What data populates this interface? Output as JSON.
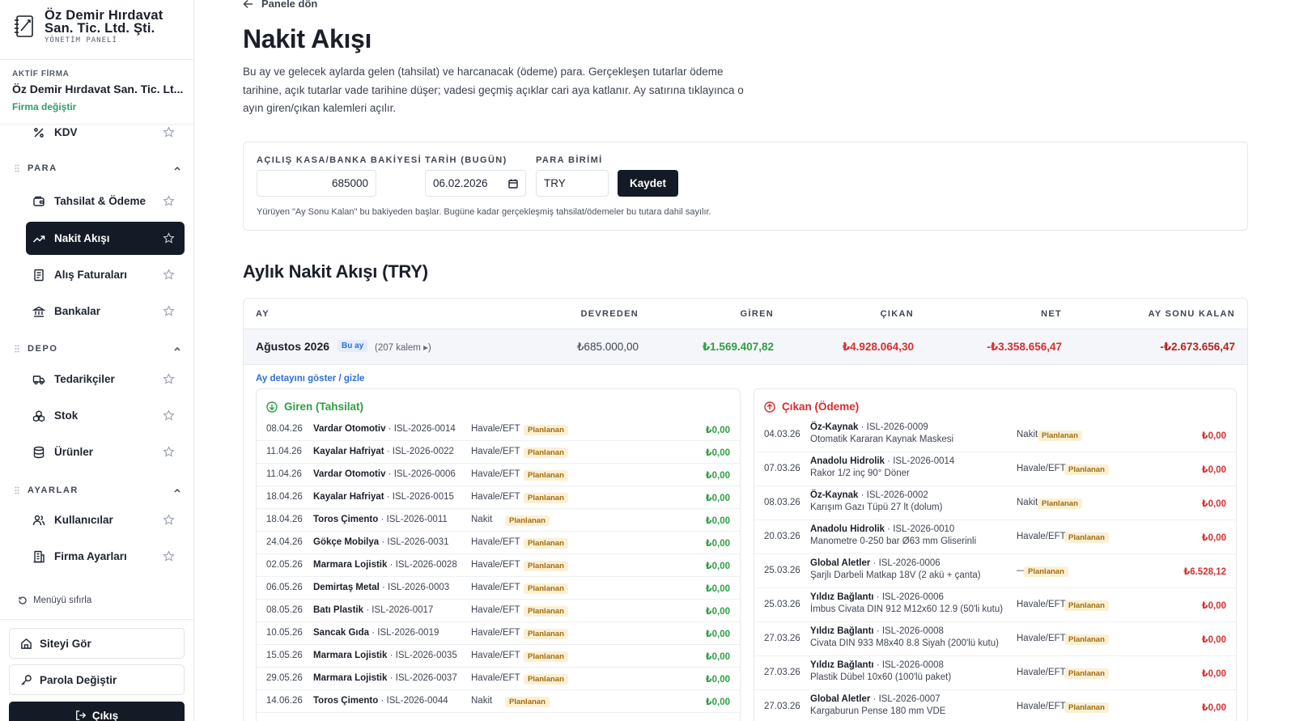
{
  "brand": {
    "name_line1": "Öz Demir Hırdavat",
    "name_line2": "San. Tic. Ltd. Şti.",
    "subtitle": "YÖNETİM PANELİ"
  },
  "active_firm": {
    "label": "AKTİF FİRMA",
    "name": "Öz Demir Hırdavat San. Tic. Lt...",
    "change_label": "Firma değiştir"
  },
  "sidebar": {
    "top_item": "KDV",
    "sections": [
      {
        "title": "PARA",
        "items": [
          "Tahsilat & Ödeme",
          "Nakit Akışı",
          "Alış Faturaları",
          "Bankalar"
        ]
      },
      {
        "title": "DEPO",
        "items": [
          "Tedarikçiler",
          "Stok",
          "Ürünler"
        ]
      },
      {
        "title": "AYARLAR",
        "items": [
          "Kullanıcılar",
          "Firma Ayarları"
        ]
      }
    ],
    "active_item": "Nakit Akışı",
    "reset_label": "Menüyü sıfırla",
    "view_site": "Siteyi Gör",
    "change_password": "Parola Değiştir",
    "logout": "Çıkış"
  },
  "page": {
    "back_label": "Panele dön",
    "title": "Nakit Akışı",
    "description": "Bu ay ve gelecek aylarda gelen (tahsilat) ve harcanacak (ödeme) para. Gerçekleşen tutarlar ödeme tarihine, açık tutarlar vade tarihine düşer; vadesi geçmiş açıklar cari aya katlanır. Ay satırına tıklayınca o ayın giren/çıkan kalemleri açılır."
  },
  "config": {
    "opening_label": "AÇILIŞ KASA/BANKA BAKİYESİ",
    "opening_value": "685000",
    "date_label": "TARİH (BUGÜN)",
    "date_value": "06.02.2026",
    "currency_label": "PARA BİRİMİ",
    "currency_value": "TRY",
    "save_label": "Kaydet",
    "note": "Yürüyen \"Ay Sonu Kalan\" bu bakiyeden başlar. Bugüne kadar gerçekleşmiş tahsilat/ödemeler bu tutara dahil sayılır."
  },
  "monthly": {
    "title": "Aylık Nakit Akışı (TRY)",
    "columns": [
      "AY",
      "DEVREDEN",
      "GİREN",
      "ÇIKAN",
      "NET",
      "AY SONU KALAN"
    ],
    "month": {
      "name": "Ağustos 2026",
      "badge": "Bu ay",
      "count": "(207 kalem ▸)",
      "devreden": "₺685.000,00",
      "giren": "₺1.569.407,82",
      "cikan": "₺4.928.064,30",
      "net": "-₺3.358.656,47",
      "ay_sonu": "-₺2.673.656,47"
    },
    "toggle_label": "Ay detayını göster / gizle"
  },
  "colors": {
    "positive": "#2f9e44",
    "negative": "#d92d2d",
    "net_negative": "#b3261e",
    "dark": "#141a26"
  },
  "giren": {
    "title": "Giren (Tahsilat)",
    "rows": [
      {
        "date": "08.04.26",
        "party": "Vardar Otomotiv",
        "ref": "· ISL-2026-0014",
        "method": "Havale/EFT",
        "tag": "Planlanan",
        "amount": "₺0,00"
      },
      {
        "date": "11.04.26",
        "party": "Kayalar Hafriyat",
        "ref": "· ISL-2026-0022",
        "method": "Havale/EFT",
        "tag": "Planlanan",
        "amount": "₺0,00"
      },
      {
        "date": "11.04.26",
        "party": "Vardar Otomotiv",
        "ref": "· ISL-2026-0006",
        "method": "Havale/EFT",
        "tag": "Planlanan",
        "amount": "₺0,00"
      },
      {
        "date": "18.04.26",
        "party": "Kayalar Hafriyat",
        "ref": "· ISL-2026-0015",
        "method": "Havale/EFT",
        "tag": "Planlanan",
        "amount": "₺0,00"
      },
      {
        "date": "18.04.26",
        "party": "Toros Çimento",
        "ref": "· ISL-2026-0011",
        "method": "Nakit",
        "tag": "Planlanan",
        "amount": "₺0,00"
      },
      {
        "date": "24.04.26",
        "party": "Gökçe Mobilya",
        "ref": "· ISL-2026-0031",
        "method": "Havale/EFT",
        "tag": "Planlanan",
        "amount": "₺0,00"
      },
      {
        "date": "02.05.26",
        "party": "Marmara Lojistik",
        "ref": "· ISL-2026-0028",
        "method": "Havale/EFT",
        "tag": "Planlanan",
        "amount": "₺0,00"
      },
      {
        "date": "06.05.26",
        "party": "Demirtaş Metal",
        "ref": "· ISL-2026-0003",
        "method": "Havale/EFT",
        "tag": "Planlanan",
        "amount": "₺0,00"
      },
      {
        "date": "08.05.26",
        "party": "Batı Plastik",
        "ref": "· ISL-2026-0017",
        "method": "Havale/EFT",
        "tag": "Planlanan",
        "amount": "₺0,00"
      },
      {
        "date": "10.05.26",
        "party": "Sancak Gıda",
        "ref": "· ISL-2026-0019",
        "method": "Havale/EFT",
        "tag": "Planlanan",
        "amount": "₺0,00"
      },
      {
        "date": "15.05.26",
        "party": "Marmara Lojistik",
        "ref": "· ISL-2026-0035",
        "method": "Havale/EFT",
        "tag": "Planlanan",
        "amount": "₺0,00"
      },
      {
        "date": "29.05.26",
        "party": "Marmara Lojistik",
        "ref": "· ISL-2026-0037",
        "method": "Havale/EFT",
        "tag": "Planlanan",
        "amount": "₺0,00"
      },
      {
        "date": "14.06.26",
        "party": "Toros Çimento",
        "ref": "· ISL-2026-0044",
        "method": "Nakit",
        "tag": "Planlanan",
        "amount": "₺0,00"
      }
    ]
  },
  "cikan": {
    "title": "Çıkan (Ödeme)",
    "rows": [
      {
        "date": "04.03.26",
        "party": "Öz-Kaynak",
        "ref": "· ISL-2026-0009",
        "desc": "Otomatik Kararan Kaynak Maskesi",
        "method": "Nakit",
        "tag": "Planlanan",
        "amount": "₺0,00"
      },
      {
        "date": "07.03.26",
        "party": "Anadolu Hidrolik",
        "ref": "· ISL-2026-0014",
        "desc": "Rakor 1/2 inç 90° Döner",
        "method": "Havale/EFT",
        "tag": "Planlanan",
        "amount": "₺0,00"
      },
      {
        "date": "08.03.26",
        "party": "Öz-Kaynak",
        "ref": "· ISL-2026-0002",
        "desc": "Karışım Gazı Tüpü 27 lt (dolum)",
        "method": "Nakit",
        "tag": "Planlanan",
        "amount": "₺0,00"
      },
      {
        "date": "20.03.26",
        "party": "Anadolu Hidrolik",
        "ref": "· ISL-2026-0010",
        "desc": "Manometre 0-250 bar Ø63 mm Gliserinli",
        "method": "Havale/EFT",
        "tag": "Planlanan",
        "amount": "₺0,00"
      },
      {
        "date": "25.03.26",
        "party": "Global Aletler",
        "ref": "· ISL-2026-0006",
        "desc": "Şarjlı Darbeli Matkap 18V (2 akü + çanta)",
        "method": "—",
        "tag": "Planlanan",
        "amount": "₺6.528,12"
      },
      {
        "date": "25.03.26",
        "party": "Yıldız Bağlantı",
        "ref": "· ISL-2026-0006",
        "desc": "İmbus Civata DIN 912 M12x60 12.9 (50'li kutu)",
        "method": "Havale/EFT",
        "tag": "Planlanan",
        "amount": "₺0,00"
      },
      {
        "date": "27.03.26",
        "party": "Yıldız Bağlantı",
        "ref": "· ISL-2026-0008",
        "desc": "Civata DIN 933 M8x40 8.8 Siyah (200'lü kutu)",
        "method": "Havale/EFT",
        "tag": "Planlanan",
        "amount": "₺0,00"
      },
      {
        "date": "27.03.26",
        "party": "Yıldız Bağlantı",
        "ref": "· ISL-2026-0008",
        "desc": "Plastik Dübel 10x60 (100'lü paket)",
        "method": "Havale/EFT",
        "tag": "Planlanan",
        "amount": "₺0,00"
      },
      {
        "date": "27.03.26",
        "party": "Global Aletler",
        "ref": "· ISL-2026-0007",
        "desc": "Kargaburun Pense 180 mm VDE",
        "method": "Havale/EFT",
        "tag": "Planlanan",
        "amount": "₺0,00"
      }
    ]
  }
}
